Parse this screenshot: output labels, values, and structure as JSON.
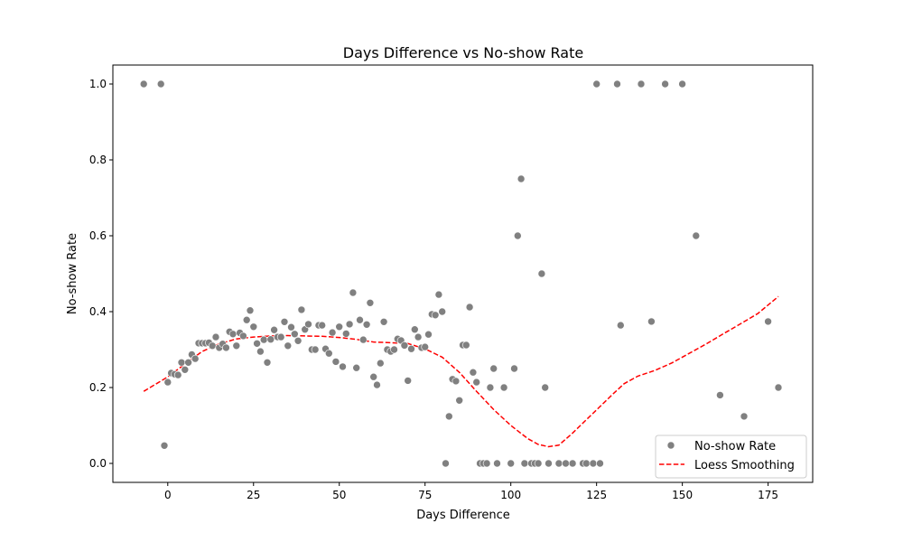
{
  "chart_data": {
    "type": "scatter",
    "title": "Days Difference vs No-show Rate",
    "xlabel": "Days Difference",
    "ylabel": "No-show Rate",
    "xlim": [
      -16,
      188
    ],
    "ylim": [
      -0.05,
      1.05
    ],
    "xticks": [
      0,
      25,
      50,
      75,
      100,
      125,
      150,
      175
    ],
    "yticks": [
      0.0,
      0.2,
      0.4,
      0.6,
      0.8,
      1.0
    ],
    "xtick_labels": [
      "0",
      "25",
      "50",
      "75",
      "100",
      "125",
      "150",
      "175"
    ],
    "ytick_labels": [
      "0.0",
      "0.2",
      "0.4",
      "0.6",
      "0.8",
      "1.0"
    ],
    "legend_position": "bottom-right",
    "grid": false,
    "series": [
      {
        "name": "No-show Rate",
        "kind": "scatter",
        "color": "#808080",
        "points": [
          [
            -7,
            1.0
          ],
          [
            -2,
            1.0
          ],
          [
            -1,
            0.047
          ],
          [
            0,
            0.214
          ],
          [
            1,
            0.238
          ],
          [
            2,
            0.235
          ],
          [
            3,
            0.233
          ],
          [
            4,
            0.266
          ],
          [
            5,
            0.247
          ],
          [
            6,
            0.266
          ],
          [
            7,
            0.287
          ],
          [
            8,
            0.276
          ],
          [
            9,
            0.317
          ],
          [
            10,
            0.317
          ],
          [
            11,
            0.317
          ],
          [
            12,
            0.318
          ],
          [
            13,
            0.31
          ],
          [
            14,
            0.333
          ],
          [
            15,
            0.305
          ],
          [
            16,
            0.315
          ],
          [
            17,
            0.305
          ],
          [
            18,
            0.347
          ],
          [
            19,
            0.341
          ],
          [
            20,
            0.31
          ],
          [
            21,
            0.344
          ],
          [
            22,
            0.336
          ],
          [
            23,
            0.378
          ],
          [
            24,
            0.403
          ],
          [
            25,
            0.36
          ],
          [
            26,
            0.316
          ],
          [
            27,
            0.295
          ],
          [
            28,
            0.326
          ],
          [
            29,
            0.266
          ],
          [
            30,
            0.327
          ],
          [
            31,
            0.352
          ],
          [
            32,
            0.333
          ],
          [
            33,
            0.333
          ],
          [
            34,
            0.373
          ],
          [
            35,
            0.31
          ],
          [
            36,
            0.359
          ],
          [
            37,
            0.341
          ],
          [
            38,
            0.323
          ],
          [
            39,
            0.405
          ],
          [
            40,
            0.353
          ],
          [
            41,
            0.367
          ],
          [
            42,
            0.3
          ],
          [
            43,
            0.3
          ],
          [
            44,
            0.364
          ],
          [
            45,
            0.364
          ],
          [
            46,
            0.302
          ],
          [
            47,
            0.29
          ],
          [
            48,
            0.345
          ],
          [
            49,
            0.268
          ],
          [
            50,
            0.36
          ],
          [
            51,
            0.255
          ],
          [
            52,
            0.342
          ],
          [
            53,
            0.367
          ],
          [
            54,
            0.45
          ],
          [
            55,
            0.252
          ],
          [
            56,
            0.378
          ],
          [
            57,
            0.326
          ],
          [
            58,
            0.366
          ],
          [
            59,
            0.423
          ],
          [
            60,
            0.228
          ],
          [
            61,
            0.207
          ],
          [
            62,
            0.264
          ],
          [
            63,
            0.373
          ],
          [
            64,
            0.3
          ],
          [
            65,
            0.295
          ],
          [
            66,
            0.3
          ],
          [
            67,
            0.328
          ],
          [
            68,
            0.324
          ],
          [
            69,
            0.311
          ],
          [
            70,
            0.218
          ],
          [
            71,
            0.302
          ],
          [
            72,
            0.353
          ],
          [
            73,
            0.333
          ],
          [
            74,
            0.305
          ],
          [
            75,
            0.307
          ],
          [
            76,
            0.34
          ],
          [
            77,
            0.393
          ],
          [
            78,
            0.391
          ],
          [
            79,
            0.445
          ],
          [
            80,
            0.4
          ],
          [
            81,
            0.0
          ],
          [
            82,
            0.124
          ],
          [
            83,
            0.222
          ],
          [
            84,
            0.217
          ],
          [
            85,
            0.166
          ],
          [
            86,
            0.312
          ],
          [
            87,
            0.312
          ],
          [
            88,
            0.412
          ],
          [
            89,
            0.24
          ],
          [
            90,
            0.214
          ],
          [
            91,
            0.0
          ],
          [
            92,
            0.0
          ],
          [
            93,
            0.0
          ],
          [
            94,
            0.2
          ],
          [
            95,
            0.25
          ],
          [
            96,
            0.0
          ],
          [
            98,
            0.2
          ],
          [
            100,
            0.0
          ],
          [
            101,
            0.25
          ],
          [
            102,
            0.6
          ],
          [
            103,
            0.75
          ],
          [
            104,
            0.0
          ],
          [
            106,
            0.0
          ],
          [
            107,
            0.0
          ],
          [
            108,
            0.0
          ],
          [
            109,
            0.5
          ],
          [
            110,
            0.2
          ],
          [
            111,
            0.0
          ],
          [
            114,
            0.0
          ],
          [
            116,
            0.0
          ],
          [
            118,
            0.0
          ],
          [
            121,
            0.0
          ],
          [
            122,
            0.0
          ],
          [
            124,
            0.0
          ],
          [
            125,
            1.0
          ],
          [
            126,
            0.0
          ],
          [
            131,
            1.0
          ],
          [
            132,
            0.364
          ],
          [
            138,
            1.0
          ],
          [
            141,
            0.374
          ],
          [
            145,
            1.0
          ],
          [
            150,
            1.0
          ],
          [
            154,
            0.6
          ],
          [
            161,
            0.18
          ],
          [
            168,
            0.124
          ],
          [
            175,
            0.374
          ],
          [
            178,
            0.2
          ]
        ]
      },
      {
        "name": "Loess Smoothing",
        "kind": "line",
        "color": "#ff0000",
        "dash": "dashed",
        "points": [
          [
            -7,
            0.19
          ],
          [
            0,
            0.228
          ],
          [
            5,
            0.262
          ],
          [
            10,
            0.295
          ],
          [
            15,
            0.315
          ],
          [
            20,
            0.328
          ],
          [
            25,
            0.333
          ],
          [
            30,
            0.336
          ],
          [
            35,
            0.337
          ],
          [
            40,
            0.336
          ],
          [
            45,
            0.335
          ],
          [
            50,
            0.332
          ],
          [
            55,
            0.327
          ],
          [
            60,
            0.32
          ],
          [
            65,
            0.318
          ],
          [
            70,
            0.316
          ],
          [
            75,
            0.302
          ],
          [
            80,
            0.28
          ],
          [
            85,
            0.24
          ],
          [
            90,
            0.19
          ],
          [
            95,
            0.142
          ],
          [
            100,
            0.1
          ],
          [
            105,
            0.065
          ],
          [
            108,
            0.05
          ],
          [
            111,
            0.044
          ],
          [
            114,
            0.048
          ],
          [
            118,
            0.08
          ],
          [
            122,
            0.115
          ],
          [
            126,
            0.15
          ],
          [
            130,
            0.185
          ],
          [
            133,
            0.21
          ],
          [
            137,
            0.23
          ],
          [
            142,
            0.245
          ],
          [
            147,
            0.265
          ],
          [
            152,
            0.29
          ],
          [
            157,
            0.315
          ],
          [
            162,
            0.342
          ],
          [
            167,
            0.368
          ],
          [
            172,
            0.395
          ],
          [
            178,
            0.44
          ]
        ]
      }
    ]
  }
}
